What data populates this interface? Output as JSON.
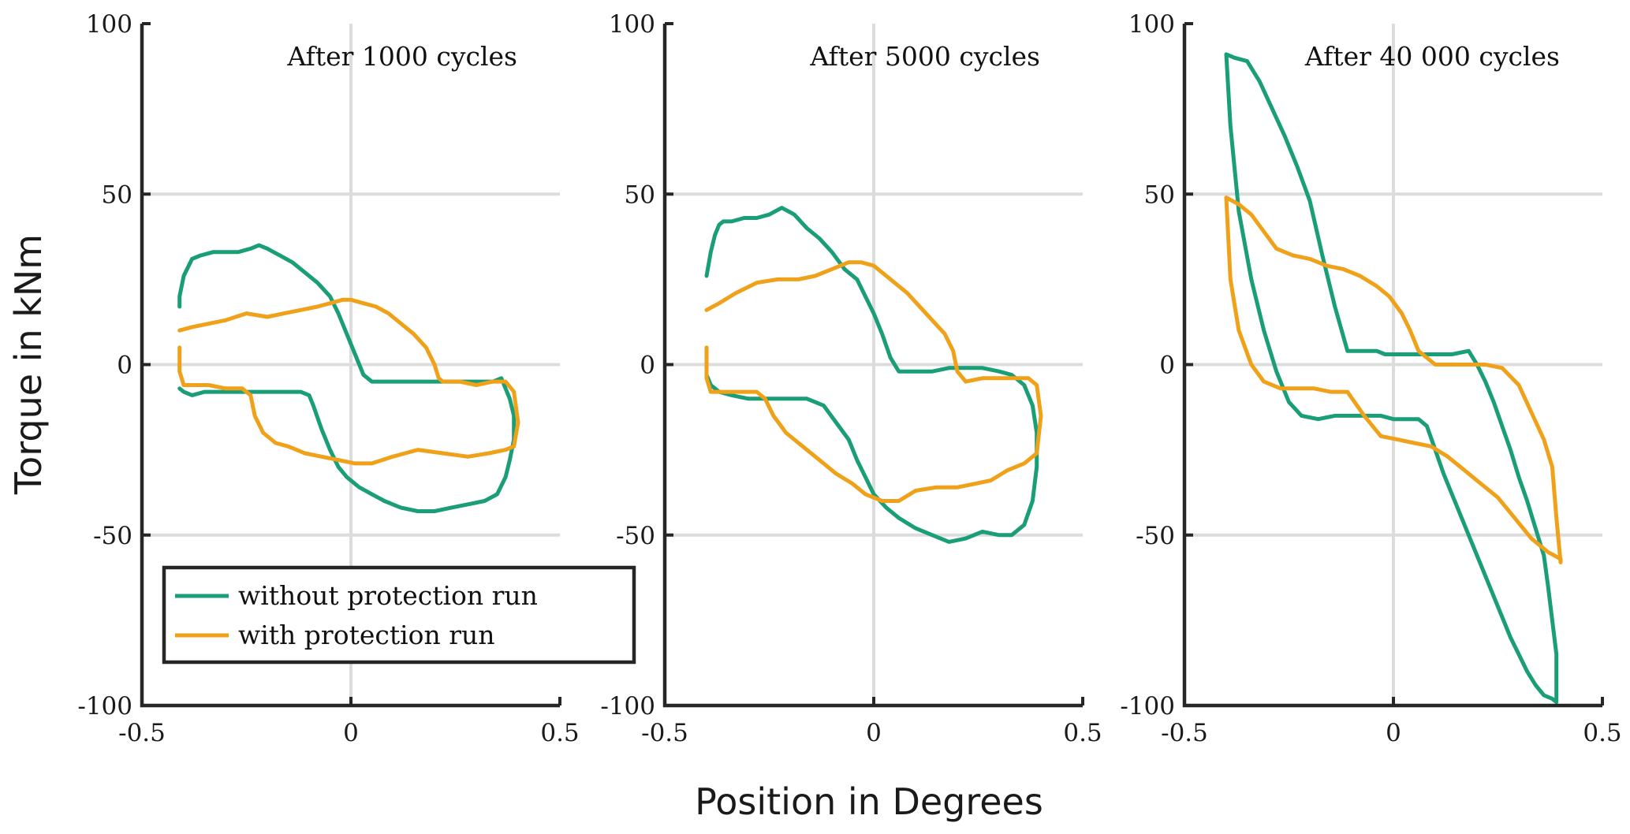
{
  "figure": {
    "ylabel": "Torque in kNm",
    "xlabel": "Position in Degrees"
  },
  "legend": {
    "location": "lower-left of first panel",
    "items": [
      {
        "label": "without protection run",
        "color": "#1a9e77"
      },
      {
        "label": "with protection run",
        "color": "#f0a11a"
      }
    ]
  },
  "chart_data": [
    {
      "type": "line",
      "title": "After 1000 cycles",
      "xlabel": "Position in Degrees",
      "ylabel": "Torque in kNm",
      "xlim": [
        -0.5,
        0.5
      ],
      "ylim": [
        -100,
        100
      ],
      "xticks": [
        -0.5,
        0,
        0.5
      ],
      "yticks": [
        -100,
        -50,
        0,
        50,
        100
      ],
      "xtick_labels": [
        "-0.5",
        "0",
        "0.5"
      ],
      "ytick_labels": [
        "-100",
        "-50",
        "0",
        "50",
        "100"
      ],
      "grid": true,
      "series": [
        {
          "name": "without protection run",
          "color": "#1a9e77",
          "x": [
            -0.41,
            -0.41,
            -0.4,
            -0.38,
            -0.36,
            -0.33,
            -0.3,
            -0.27,
            -0.24,
            -0.22,
            -0.2,
            -0.17,
            -0.14,
            -0.11,
            -0.08,
            -0.05,
            -0.03,
            -0.01,
            0.01,
            0.03,
            0.05,
            0.07,
            0.1,
            0.14,
            0.18,
            0.22,
            0.26,
            0.3,
            0.34,
            0.36,
            0.37,
            0.38,
            0.39,
            0.39,
            0.38,
            0.37,
            0.35,
            0.32,
            0.28,
            0.24,
            0.2,
            0.16,
            0.12,
            0.08,
            0.05,
            0.02,
            -0.01,
            -0.03,
            -0.05,
            -0.07,
            -0.09,
            -0.1,
            -0.12,
            -0.15,
            -0.2,
            -0.25,
            -0.3,
            -0.35,
            -0.38,
            -0.4,
            -0.41
          ],
          "y": [
            17,
            20,
            26,
            31,
            32,
            33,
            33,
            33,
            34,
            35,
            34,
            32,
            30,
            27,
            24,
            20,
            15,
            9,
            3,
            -3,
            -5,
            -5,
            -5,
            -5,
            -5,
            -5,
            -5,
            -5,
            -5,
            -4,
            -7,
            -10,
            -15,
            -22,
            -28,
            -33,
            -38,
            -40,
            -41,
            -42,
            -43,
            -43,
            -42,
            -40,
            -38,
            -36,
            -33,
            -30,
            -25,
            -19,
            -12,
            -9,
            -8,
            -8,
            -8,
            -8,
            -8,
            -8,
            -9,
            -8,
            -7
          ]
        },
        {
          "name": "with protection run",
          "color": "#f0a11a",
          "x": [
            -0.41,
            -0.38,
            -0.34,
            -0.3,
            -0.25,
            -0.2,
            -0.16,
            -0.12,
            -0.08,
            -0.05,
            -0.02,
            0.0,
            0.03,
            0.06,
            0.09,
            0.12,
            0.15,
            0.18,
            0.2,
            0.21,
            0.22,
            0.26,
            0.3,
            0.34,
            0.37,
            0.39,
            0.4,
            0.39,
            0.37,
            0.33,
            0.28,
            0.22,
            0.16,
            0.1,
            0.05,
            0.01,
            -0.03,
            -0.07,
            -0.11,
            -0.15,
            -0.18,
            -0.21,
            -0.23,
            -0.24,
            -0.26,
            -0.3,
            -0.34,
            -0.38,
            -0.4,
            -0.41,
            -0.41
          ],
          "y": [
            10,
            11,
            12,
            13,
            15,
            14,
            15,
            16,
            17,
            18,
            19,
            19,
            18,
            17,
            15,
            12,
            9,
            5,
            0,
            -4,
            -5,
            -5,
            -6,
            -5,
            -5,
            -8,
            -17,
            -24,
            -25,
            -26,
            -27,
            -26,
            -25,
            -27,
            -29,
            -29,
            -28,
            -27,
            -26,
            -24,
            -23,
            -20,
            -15,
            -9,
            -7,
            -7,
            -6,
            -6,
            -6,
            -2,
            5
          ]
        }
      ]
    },
    {
      "type": "line",
      "title": "After 5000 cycles",
      "xlabel": "Position in Degrees",
      "ylabel": "Torque in kNm",
      "xlim": [
        -0.5,
        0.5
      ],
      "ylim": [
        -100,
        100
      ],
      "xticks": [
        -0.5,
        0,
        0.5
      ],
      "yticks": [
        -100,
        -50,
        0,
        50,
        100
      ],
      "xtick_labels": [
        "-0.5",
        "0",
        "0.5"
      ],
      "ytick_labels": [
        "-100",
        "-50",
        "0",
        "50",
        "100"
      ],
      "grid": true,
      "series": [
        {
          "name": "without protection run",
          "color": "#1a9e77",
          "x": [
            -0.4,
            -0.39,
            -0.38,
            -0.37,
            -0.36,
            -0.34,
            -0.31,
            -0.28,
            -0.25,
            -0.22,
            -0.19,
            -0.16,
            -0.13,
            -0.1,
            -0.07,
            -0.04,
            -0.02,
            0.0,
            0.02,
            0.04,
            0.06,
            0.1,
            0.14,
            0.18,
            0.22,
            0.26,
            0.3,
            0.33,
            0.36,
            0.38,
            0.39,
            0.39,
            0.38,
            0.36,
            0.33,
            0.3,
            0.26,
            0.22,
            0.18,
            0.14,
            0.1,
            0.06,
            0.03,
            0.0,
            -0.02,
            -0.04,
            -0.06,
            -0.09,
            -0.12,
            -0.16,
            -0.2,
            -0.25,
            -0.3,
            -0.34,
            -0.37,
            -0.39,
            -0.4
          ],
          "y": [
            26,
            33,
            38,
            41,
            42,
            42,
            43,
            43,
            44,
            46,
            44,
            40,
            37,
            33,
            28,
            25,
            20,
            15,
            9,
            2,
            -2,
            -2,
            -2,
            -1,
            -1,
            -1,
            -2,
            -3,
            -6,
            -12,
            -20,
            -30,
            -40,
            -47,
            -50,
            -50,
            -49,
            -51,
            -52,
            -50,
            -48,
            -45,
            -42,
            -38,
            -33,
            -28,
            -22,
            -17,
            -12,
            -10,
            -10,
            -10,
            -10,
            -9,
            -8,
            -6,
            -3
          ]
        },
        {
          "name": "with protection run",
          "color": "#f0a11a",
          "x": [
            -0.4,
            -0.37,
            -0.33,
            -0.28,
            -0.23,
            -0.18,
            -0.14,
            -0.1,
            -0.06,
            -0.03,
            0.0,
            0.02,
            0.05,
            0.08,
            0.11,
            0.14,
            0.17,
            0.19,
            0.2,
            0.22,
            0.26,
            0.3,
            0.34,
            0.37,
            0.39,
            0.4,
            0.39,
            0.36,
            0.32,
            0.28,
            0.24,
            0.2,
            0.15,
            0.1,
            0.06,
            0.02,
            -0.02,
            -0.05,
            -0.09,
            -0.13,
            -0.17,
            -0.21,
            -0.24,
            -0.26,
            -0.28,
            -0.32,
            -0.36,
            -0.39,
            -0.4,
            -0.4
          ],
          "y": [
            16,
            18,
            21,
            24,
            25,
            25,
            26,
            28,
            30,
            30,
            29,
            27,
            24,
            21,
            17,
            13,
            9,
            4,
            -2,
            -5,
            -4,
            -4,
            -4,
            -4,
            -6,
            -15,
            -26,
            -29,
            -31,
            -34,
            -35,
            -36,
            -36,
            -37,
            -40,
            -40,
            -38,
            -35,
            -32,
            -28,
            -24,
            -20,
            -15,
            -10,
            -8,
            -8,
            -8,
            -8,
            -4,
            5
          ]
        }
      ]
    },
    {
      "type": "line",
      "title": "After 40 000 cycles",
      "xlabel": "Position in Degrees",
      "ylabel": "Torque in kNm",
      "xlim": [
        -0.5,
        0.5
      ],
      "ylim": [
        -100,
        100
      ],
      "xticks": [
        -0.5,
        0,
        0.5
      ],
      "yticks": [
        -100,
        -50,
        0,
        50,
        100
      ],
      "xtick_labels": [
        "-0.5",
        "0",
        "0.5"
      ],
      "ytick_labels": [
        "-100",
        "-50",
        "0",
        "50",
        "100"
      ],
      "grid": true,
      "series": [
        {
          "name": "without protection run",
          "color": "#1a9e77",
          "x": [
            -0.4,
            -0.38,
            -0.35,
            -0.32,
            -0.29,
            -0.26,
            -0.23,
            -0.2,
            -0.17,
            -0.14,
            -0.11,
            -0.08,
            -0.06,
            -0.04,
            -0.02,
            0.0,
            0.03,
            0.06,
            0.1,
            0.14,
            0.18,
            0.2,
            0.22,
            0.24,
            0.26,
            0.28,
            0.3,
            0.32,
            0.34,
            0.36,
            0.37,
            0.38,
            0.39,
            0.39,
            0.38,
            0.36,
            0.34,
            0.32,
            0.3,
            0.28,
            0.26,
            0.24,
            0.22,
            0.2,
            0.18,
            0.16,
            0.14,
            0.12,
            0.1,
            0.08,
            0.06,
            0.04,
            0.02,
            0.0,
            -0.03,
            -0.06,
            -0.1,
            -0.14,
            -0.18,
            -0.22,
            -0.25,
            -0.28,
            -0.31,
            -0.34,
            -0.37,
            -0.39,
            -0.4
          ],
          "y": [
            91,
            90,
            89,
            83,
            75,
            67,
            58,
            48,
            32,
            17,
            4,
            4,
            4,
            4,
            3,
            3,
            3,
            3,
            3,
            3,
            4,
            0,
            -5,
            -11,
            -18,
            -25,
            -33,
            -40,
            -48,
            -56,
            -65,
            -75,
            -85,
            -99,
            -98,
            -97,
            -94,
            -90,
            -85,
            -80,
            -74,
            -68,
            -62,
            -56,
            -50,
            -44,
            -38,
            -32,
            -25,
            -18,
            -16,
            -16,
            -16,
            -16,
            -15,
            -15,
            -15,
            -15,
            -16,
            -15,
            -11,
            -2,
            10,
            25,
            45,
            70,
            91
          ]
        },
        {
          "name": "with protection run",
          "color": "#f0a11a",
          "x": [
            -0.4,
            -0.37,
            -0.34,
            -0.31,
            -0.28,
            -0.24,
            -0.2,
            -0.16,
            -0.12,
            -0.08,
            -0.04,
            -0.01,
            0.02,
            0.04,
            0.06,
            0.1,
            0.14,
            0.18,
            0.22,
            0.26,
            0.3,
            0.33,
            0.36,
            0.38,
            0.39,
            0.4,
            0.4,
            0.37,
            0.33,
            0.29,
            0.25,
            0.21,
            0.17,
            0.13,
            0.09,
            0.05,
            0.01,
            -0.03,
            -0.07,
            -0.11,
            -0.15,
            -0.19,
            -0.23,
            -0.27,
            -0.31,
            -0.34,
            -0.37,
            -0.39,
            -0.4
          ],
          "y": [
            49,
            47,
            44,
            39,
            34,
            32,
            31,
            29,
            28,
            26,
            23,
            20,
            15,
            10,
            4,
            0,
            0,
            0,
            0,
            -1,
            -6,
            -14,
            -22,
            -30,
            -45,
            -58,
            -57,
            -55,
            -51,
            -45,
            -39,
            -35,
            -31,
            -27,
            -24,
            -23,
            -22,
            -21,
            -15,
            -8,
            -8,
            -7,
            -7,
            -7,
            -5,
            0,
            10,
            25,
            49
          ]
        }
      ]
    }
  ]
}
